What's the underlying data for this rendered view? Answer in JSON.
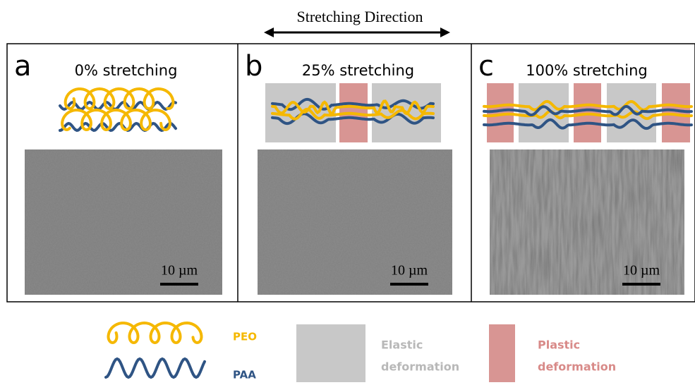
{
  "header": {
    "title": "Stretching Direction"
  },
  "panels": [
    {
      "label": "a",
      "title": "0% stretching",
      "scale_bar": "10 µm"
    },
    {
      "label": "b",
      "title": "25% stretching",
      "scale_bar": "10 µm"
    },
    {
      "label": "c",
      "title": "100% stretching",
      "scale_bar": "10 µm"
    }
  ],
  "legend": [
    {
      "label": "PEO"
    },
    {
      "label": "PAA"
    },
    {
      "lines": [
        "Elastic",
        "deformation"
      ]
    },
    {
      "lines": [
        "Plastic",
        "deformation"
      ]
    }
  ]
}
